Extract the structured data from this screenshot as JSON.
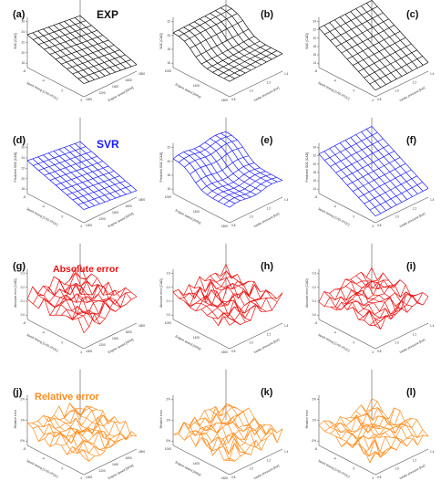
{
  "figure": {
    "row_titles": [
      {
        "text": "EXP",
        "color": "#111111"
      },
      {
        "text": "SVR",
        "color": "#1a1aff"
      },
      {
        "text": "Absolute error",
        "color": "#ee1111"
      },
      {
        "text": "Relative error",
        "color": "#ff8c1a"
      }
    ],
    "row_colors": [
      "#111111",
      "#1a1aff",
      "#ee1111",
      "#ff8c1a"
    ]
  },
  "chart_data": [
    {
      "panel": "(a)",
      "type": "surface",
      "zlabel": "SOC [CAD]",
      "xlabel": "Spark timing [CAD ATDC]",
      "ylabel": "Engine speed [RPM]",
      "zticks": [
        "18",
        "20",
        "22",
        "24",
        "26"
      ],
      "xticks": [
        "-8",
        "-4",
        "0",
        "4"
      ],
      "yticks": [
        "1000",
        "1200",
        "1400",
        "1600",
        "1800"
      ]
    },
    {
      "panel": "(b)",
      "type": "surface",
      "zlabel": "SOC [CAD]",
      "xlabel": "Engine speed [RPM]",
      "ylabel": "Intake pressure [bar]",
      "zticks": [
        "16",
        "18",
        "20",
        "22"
      ],
      "xticks": [
        "1000",
        "1400",
        "1800"
      ],
      "yticks": [
        "0.8",
        "1.0",
        "1.2",
        "1.4"
      ]
    },
    {
      "panel": "(c)",
      "type": "surface",
      "zlabel": "SOC [CAD]",
      "xlabel": "Spark timing [CAD ATDC]",
      "ylabel": "Intake pressure [bar]",
      "zticks": [
        "14",
        "16",
        "18",
        "20",
        "22",
        "24"
      ],
      "xticks": [
        "-8",
        "-4",
        "0",
        "4"
      ],
      "yticks": [
        "0.8",
        "1.0",
        "1.2",
        "1.4"
      ]
    },
    {
      "panel": "(d)",
      "type": "surface",
      "zlabel": "Predicted SOC [CAD]",
      "xlabel": "Spark timing [CAD ATDC]",
      "ylabel": "Engine speed [RPM]",
      "zticks": [
        "18",
        "20",
        "22",
        "24",
        "26"
      ],
      "xticks": [
        "-8",
        "-4",
        "0",
        "4"
      ],
      "yticks": [
        "1000",
        "1200",
        "1400",
        "1600",
        "1800"
      ]
    },
    {
      "panel": "(e)",
      "type": "surface",
      "zlabel": "Predicted SOC [CAD]",
      "xlabel": "Engine speed [RPM]",
      "ylabel": "Intake pressure [bar]",
      "zticks": [
        "16",
        "18",
        "20",
        "22"
      ],
      "xticks": [
        "1000",
        "1400",
        "1800"
      ],
      "yticks": [
        "0.8",
        "1.0",
        "1.2",
        "1.4"
      ]
    },
    {
      "panel": "(f)",
      "type": "surface",
      "zlabel": "Predicted SOC [CAD]",
      "xlabel": "Spark timing [CAD ATDC]",
      "ylabel": "Intake pressure [bar]",
      "zticks": [
        "14",
        "16",
        "18",
        "20",
        "22",
        "24"
      ],
      "xticks": [
        "-8",
        "-4",
        "0",
        "4"
      ],
      "yticks": [
        "0.8",
        "1.0",
        "1.2",
        "1.4"
      ]
    },
    {
      "panel": "(g)",
      "type": "surface",
      "zlabel": "Absolute error [CAD]",
      "xlabel": "Spark timing [CAD ATDC]",
      "ylabel": "Engine speed [RPM]",
      "zticks": [
        "0.0",
        "0.1",
        "0.2",
        "0.3"
      ],
      "xticks": [
        "-8",
        "-4",
        "0",
        "4"
      ],
      "yticks": [
        "1000",
        "1200",
        "1400",
        "1600",
        "1800"
      ]
    },
    {
      "panel": "(h)",
      "type": "surface",
      "zlabel": "Absolute error [CAD]",
      "xlabel": "Engine speed [RPM]",
      "ylabel": "Intake pressure [bar]",
      "zticks": [
        "0.0",
        "0.1",
        "0.2",
        "0.3"
      ],
      "xticks": [
        "1000",
        "1400",
        "1800"
      ],
      "yticks": [
        "0.8",
        "1.0",
        "1.2",
        "1.4"
      ]
    },
    {
      "panel": "(i)",
      "type": "surface",
      "zlabel": "Absolute error [CAD]",
      "xlabel": "Spark timing [CAD ATDC]",
      "ylabel": "Intake pressure [bar]",
      "zticks": [
        "0.0",
        "0.1",
        "0.2",
        "0.3"
      ],
      "xticks": [
        "-8",
        "-4",
        "0",
        "4"
      ],
      "yticks": [
        "0.8",
        "1.0",
        "1.2",
        "1.4"
      ]
    },
    {
      "panel": "(j)",
      "type": "surface",
      "zlabel": "Relative error",
      "xlabel": "Spark timing [CAD ATDC]",
      "ylabel": "Engine speed [RPM]",
      "zticks": [
        "0%",
        "1%",
        "2%"
      ],
      "xticks": [
        "-8",
        "-4",
        "0",
        "4"
      ],
      "yticks": [
        "1000",
        "1200",
        "1400",
        "1600",
        "1800"
      ]
    },
    {
      "panel": "(k)",
      "type": "surface",
      "zlabel": "Relative error",
      "xlabel": "Engine speed [RPM]",
      "ylabel": "Intake pressure [bar]",
      "zticks": [
        "0%",
        "1%",
        "2%"
      ],
      "xticks": [
        "1000",
        "1400",
        "1800"
      ],
      "yticks": [
        "0.8",
        "1.0",
        "1.2",
        "1.4"
      ]
    },
    {
      "panel": "(l)",
      "type": "surface",
      "zlabel": "Relative error",
      "xlabel": "Spark timing [CAD ATDC]",
      "ylabel": "Intake pressure [bar]",
      "zticks": [
        "0%",
        "1%",
        "2%"
      ],
      "xticks": [
        "-8",
        "-4",
        "0",
        "4"
      ],
      "yticks": [
        "0.8",
        "1.0",
        "1.2",
        "1.4"
      ]
    }
  ]
}
